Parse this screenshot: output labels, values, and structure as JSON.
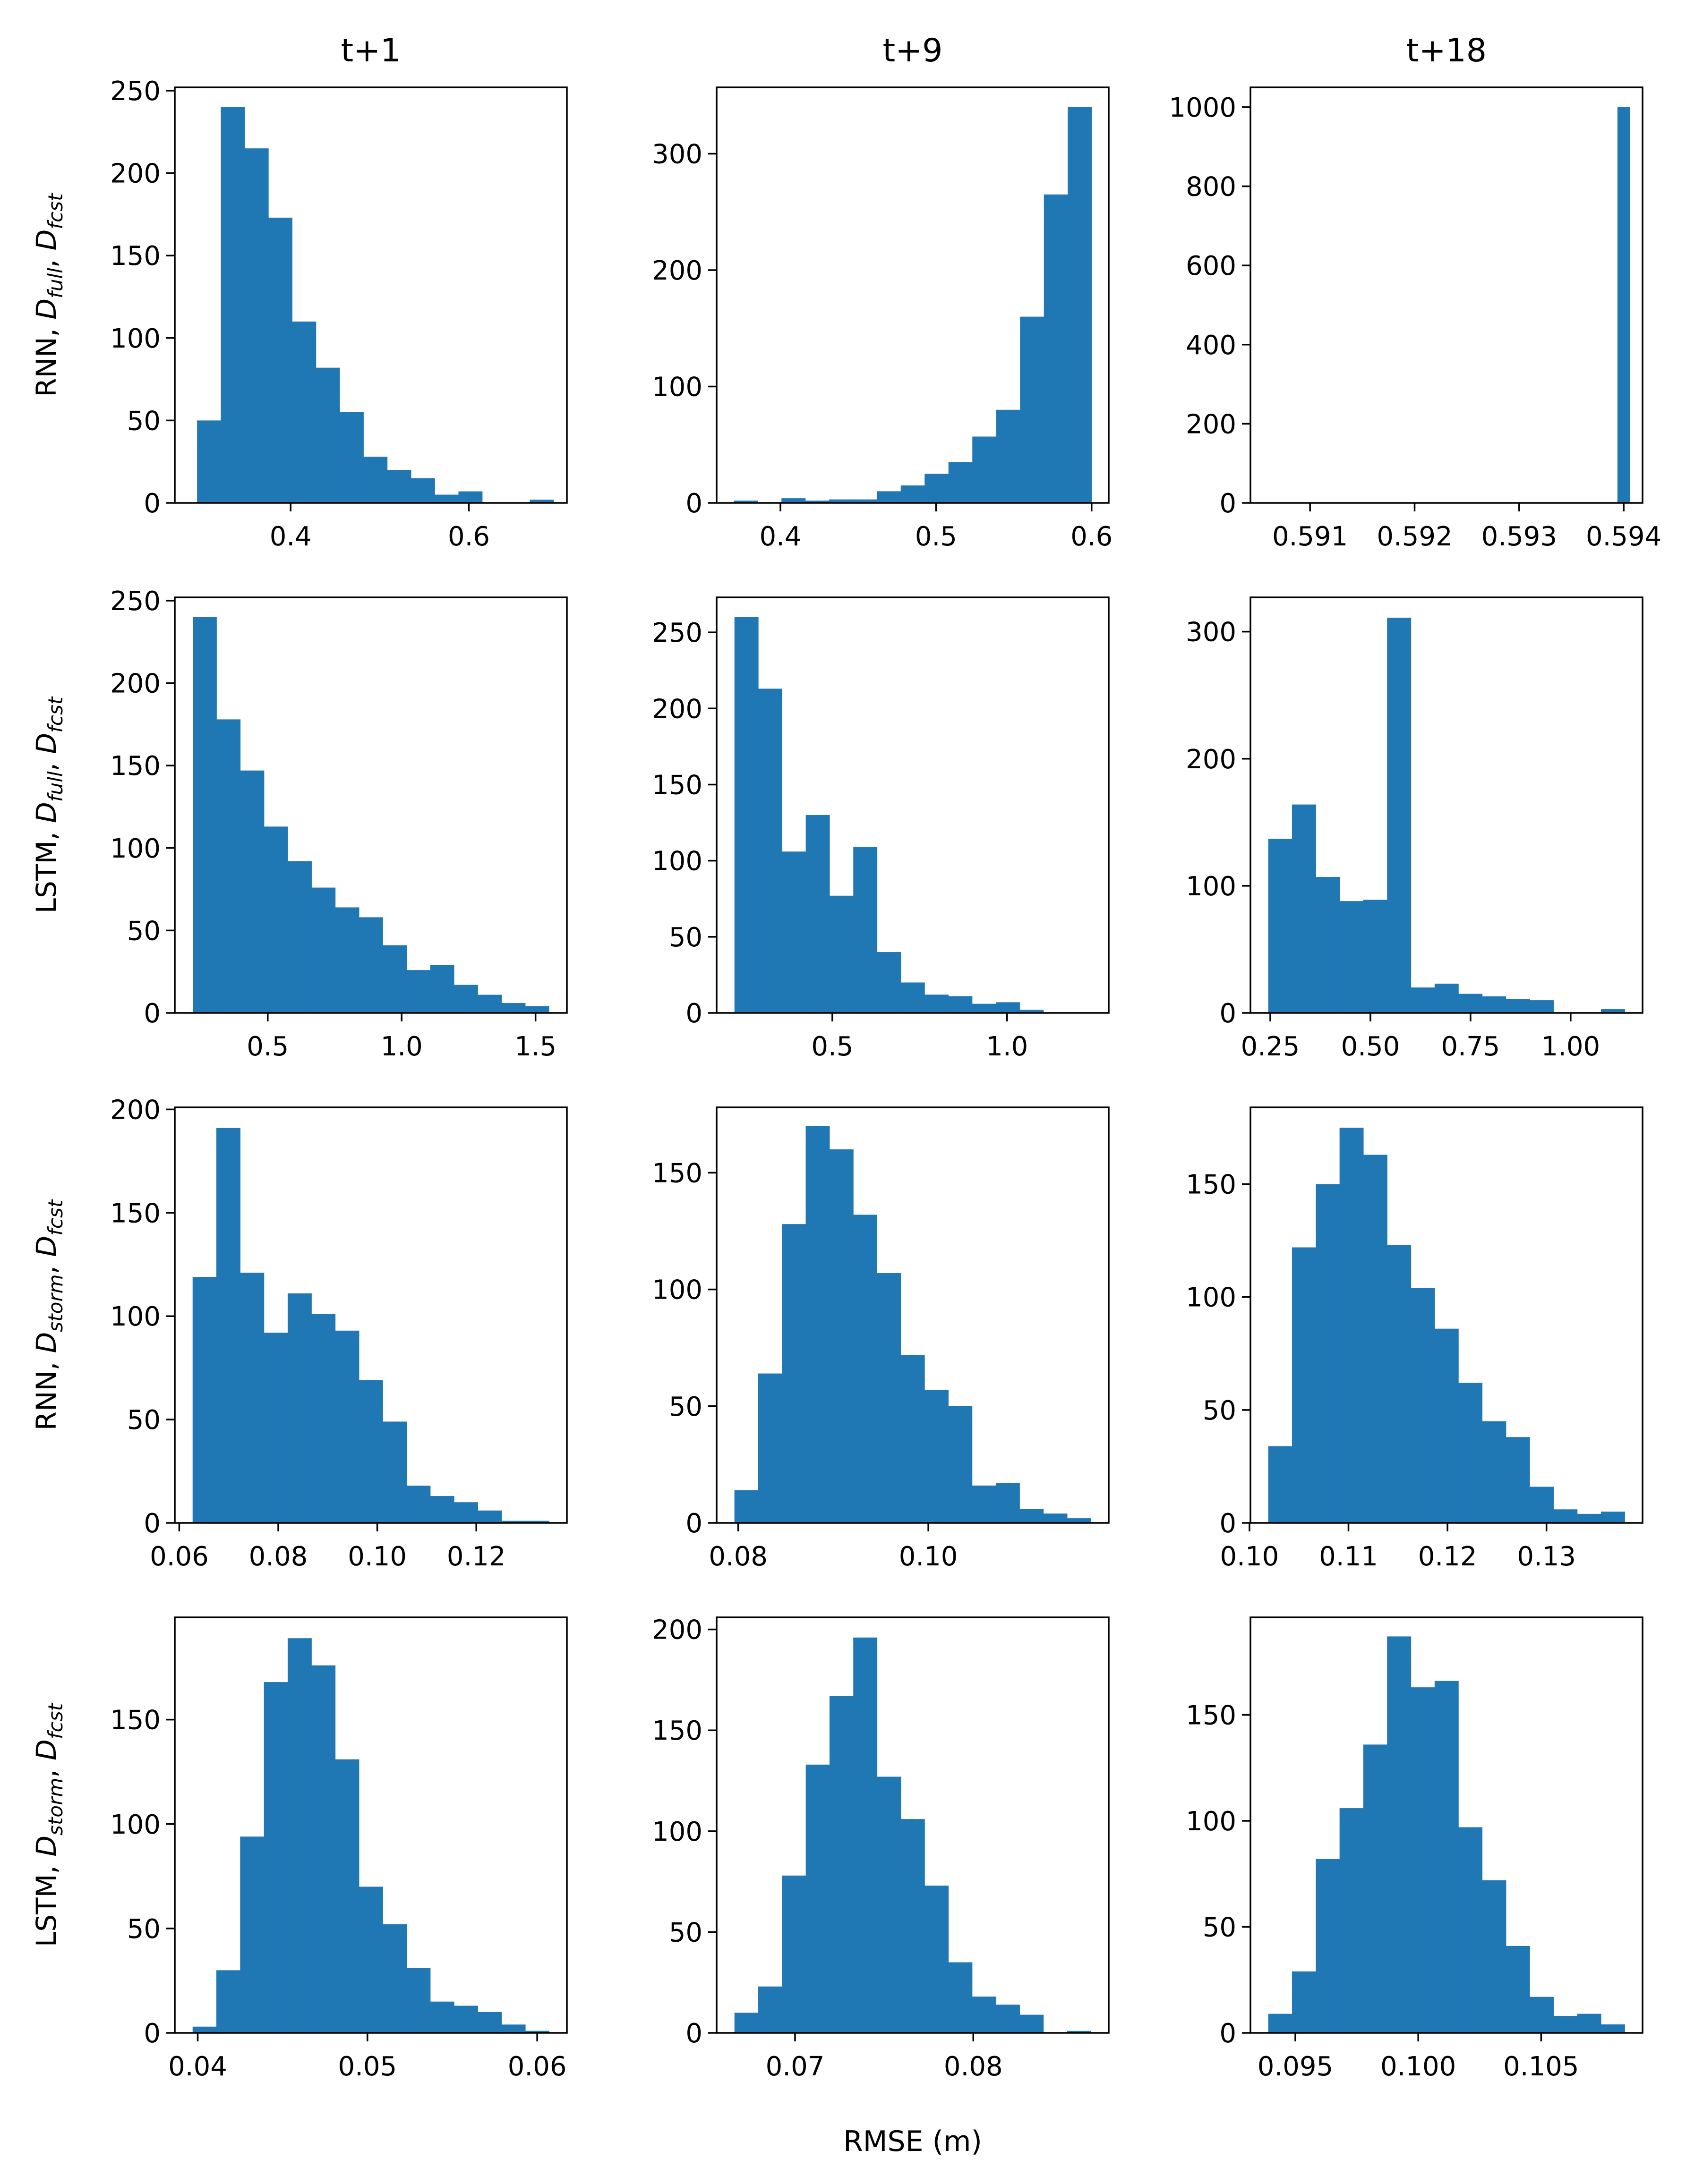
{
  "figure": {
    "col_titles": [
      "t+1",
      "t+9",
      "t+18"
    ],
    "row_labels": [
      {
        "model": "RNN",
        "d1_base": "D",
        "d1_sub": "full",
        "d2_base": "D",
        "d2_sub": "fcst"
      },
      {
        "model": "LSTM",
        "d1_base": "D",
        "d1_sub": "full",
        "d2_base": "D",
        "d2_sub": "fcst"
      },
      {
        "model": "RNN",
        "d1_base": "D",
        "d1_sub": "storm",
        "d2_base": "D",
        "d2_sub": "fcst"
      },
      {
        "model": "LSTM",
        "d1_base": "D",
        "d1_sub": "storm",
        "d2_base": "D",
        "d2_sub": "fcst"
      }
    ],
    "xlabel": "RMSE (m)",
    "bar_color": "#1f77b4"
  },
  "chart_data": [
    {
      "type": "bar",
      "panel": "r0c0",
      "title": "t+1",
      "ylabel": "RNN, D_full, D_fcst",
      "bin_start": 0.295,
      "bin_end": 0.695,
      "values": [
        50,
        240,
        215,
        173,
        110,
        82,
        55,
        28,
        20,
        15,
        5,
        7,
        0,
        0,
        2
      ],
      "xlim": [
        0.27,
        0.71
      ],
      "ylim": [
        0,
        252
      ],
      "xticks": [
        0.4,
        0.6
      ],
      "xtick_labels": [
        "0.4",
        "0.6"
      ],
      "yticks": [
        0,
        50,
        100,
        150,
        200,
        250
      ],
      "ytick_labels": [
        "0",
        "50",
        "100",
        "150",
        "200",
        "250"
      ]
    },
    {
      "type": "bar",
      "panel": "r0c1",
      "title": "t+9",
      "ylabel": "",
      "bin_start": 0.37,
      "bin_end": 0.6,
      "values": [
        2,
        0,
        4,
        2,
        3,
        3,
        10,
        15,
        25,
        35,
        57,
        80,
        160,
        265,
        340
      ],
      "xlim": [
        0.359,
        0.611
      ],
      "ylim": [
        0,
        357
      ],
      "xticks": [
        0.4,
        0.5,
        0.6
      ],
      "xtick_labels": [
        "0.4",
        "0.5",
        "0.6"
      ],
      "yticks": [
        0,
        100,
        200,
        300
      ],
      "ytick_labels": [
        "0",
        "100",
        "200",
        "300"
      ]
    },
    {
      "type": "bar",
      "panel": "r0c2",
      "title": "t+18",
      "ylabel": "",
      "bin_start": 0.59394,
      "bin_end": 0.59406,
      "values": [
        1000
      ],
      "xlim": [
        0.59043,
        0.59418
      ],
      "ylim": [
        0,
        1050
      ],
      "xticks": [
        0.591,
        0.592,
        0.593,
        0.594
      ],
      "xtick_labels": [
        "0.591",
        "0.592",
        "0.593",
        "0.594"
      ],
      "yticks": [
        0,
        200,
        400,
        600,
        800,
        1000
      ],
      "ytick_labels": [
        "0",
        "200",
        "400",
        "600",
        "800",
        "1000"
      ]
    },
    {
      "type": "bar",
      "panel": "r1c0",
      "title": "",
      "ylabel": "LSTM, D_full, D_fcst",
      "bin_start": 0.22,
      "bin_end": 1.55,
      "values": [
        240,
        178,
        147,
        113,
        92,
        76,
        64,
        58,
        41,
        26,
        29,
        17,
        11,
        6,
        4
      ],
      "xlim": [
        0.153,
        1.617
      ],
      "ylim": [
        0,
        252
      ],
      "xticks": [
        0.5,
        1.0,
        1.5
      ],
      "xtick_labels": [
        "0.5",
        "1.0",
        "1.5"
      ],
      "yticks": [
        0,
        50,
        100,
        150,
        200,
        250
      ],
      "ytick_labels": [
        "0",
        "50",
        "100",
        "150",
        "200",
        "250"
      ]
    },
    {
      "type": "bar",
      "panel": "r1c1",
      "title": "",
      "ylabel": "",
      "bin_start": 0.22,
      "bin_end": 1.24,
      "values": [
        260,
        213,
        106,
        130,
        77,
        109,
        40,
        20,
        12,
        11,
        6,
        7,
        2,
        0,
        0
      ],
      "xlim": [
        0.169,
        1.291
      ],
      "ylim": [
        0,
        273
      ],
      "xticks": [
        0.5,
        1.0
      ],
      "xtick_labels": [
        "0.5",
        "1.0"
      ],
      "yticks": [
        0,
        50,
        100,
        150,
        200,
        250
      ],
      "ytick_labels": [
        "0",
        "50",
        "100",
        "150",
        "200",
        "250"
      ]
    },
    {
      "type": "bar",
      "panel": "r1c2",
      "title": "",
      "ylabel": "",
      "bin_start": 0.245,
      "bin_end": 1.135,
      "values": [
        137,
        164,
        107,
        88,
        89,
        311,
        20,
        23,
        15,
        13,
        11,
        10,
        0,
        0,
        3
      ],
      "xlim": [
        0.2005,
        1.1795
      ],
      "ylim": [
        0,
        327
      ],
      "xticks": [
        0.25,
        0.5,
        0.75,
        1.0
      ],
      "xtick_labels": [
        "0.25",
        "0.50",
        "0.75",
        "1.00"
      ],
      "yticks": [
        0,
        100,
        200,
        300
      ],
      "ytick_labels": [
        "0",
        "100",
        "200",
        "300"
      ]
    },
    {
      "type": "bar",
      "panel": "r2c0",
      "title": "",
      "ylabel": "RNN, D_storm, D_fcst",
      "bin_start": 0.0627,
      "bin_end": 0.1347,
      "values": [
        119,
        191,
        121,
        92,
        111,
        101,
        93,
        69,
        49,
        18,
        13,
        10,
        6,
        1,
        1
      ],
      "xlim": [
        0.0591,
        0.1383
      ],
      "ylim": [
        0,
        201
      ],
      "xticks": [
        0.06,
        0.08,
        0.1,
        0.12
      ],
      "xtick_labels": [
        "0.06",
        "0.08",
        "0.10",
        "0.12"
      ],
      "yticks": [
        0,
        50,
        100,
        150,
        200
      ],
      "ytick_labels": [
        "0",
        "50",
        "100",
        "150",
        "200"
      ]
    },
    {
      "type": "bar",
      "panel": "r2c1",
      "title": "",
      "ylabel": "",
      "bin_start": 0.0796,
      "bin_end": 0.1171,
      "values": [
        14,
        64,
        128,
        170,
        160,
        132,
        107,
        72,
        57,
        50,
        16,
        17,
        6,
        4,
        2
      ],
      "xlim": [
        0.07773,
        0.11898
      ],
      "ylim": [
        0,
        178
      ],
      "xticks": [
        0.08,
        0.1
      ],
      "xtick_labels": [
        "0.08",
        "0.10"
      ],
      "yticks": [
        0,
        50,
        100,
        150
      ],
      "ytick_labels": [
        "0",
        "50",
        "100",
        "150"
      ]
    },
    {
      "type": "bar",
      "panel": "r2c2",
      "title": "",
      "ylabel": "",
      "bin_start": 0.1019,
      "bin_end": 0.1379,
      "values": [
        34,
        122,
        150,
        175,
        163,
        123,
        104,
        86,
        62,
        45,
        38,
        16,
        6,
        4,
        5
      ],
      "xlim": [
        0.1001,
        0.1397
      ],
      "ylim": [
        0,
        184
      ],
      "xticks": [
        0.1,
        0.11,
        0.12,
        0.13
      ],
      "xtick_labels": [
        "0.10",
        "0.11",
        "0.12",
        "0.13"
      ],
      "yticks": [
        0,
        50,
        100,
        150
      ],
      "ytick_labels": [
        "0",
        "50",
        "100",
        "150"
      ]
    },
    {
      "type": "bar",
      "panel": "r3c0",
      "title": "",
      "ylabel": "LSTM, D_storm, D_fcst",
      "bin_start": 0.0397,
      "bin_end": 0.0607,
      "values": [
        3,
        30,
        94,
        168,
        189,
        176,
        131,
        70,
        52,
        31,
        15,
        13,
        10,
        4,
        1
      ],
      "xlim": [
        0.03865,
        0.06175
      ],
      "ylim": [
        0,
        199
      ],
      "xticks": [
        0.04,
        0.05,
        0.06
      ],
      "xtick_labels": [
        "0.04",
        "0.05",
        "0.06"
      ],
      "yticks": [
        0,
        50,
        100,
        150
      ],
      "ytick_labels": [
        "0",
        "50",
        "100",
        "150"
      ]
    },
    {
      "type": "bar",
      "panel": "r3c1",
      "title": "",
      "ylabel": "",
      "bin_start": 0.0666,
      "bin_end": 0.0866,
      "values": [
        10,
        23,
        78,
        133,
        167,
        196,
        127,
        106,
        73,
        35,
        18,
        14,
        9,
        0,
        1
      ],
      "xlim": [
        0.0656,
        0.0876
      ],
      "ylim": [
        0,
        206
      ],
      "xticks": [
        0.07,
        0.08
      ],
      "xtick_labels": [
        "0.07",
        "0.08"
      ],
      "yticks": [
        0,
        50,
        100,
        150,
        200
      ],
      "ytick_labels": [
        "0",
        "50",
        "100",
        "150",
        "200"
      ]
    },
    {
      "type": "bar",
      "panel": "r3c2",
      "title": "",
      "ylabel": "",
      "bin_start": 0.0939,
      "bin_end": 0.1084,
      "values": [
        9,
        29,
        82,
        106,
        136,
        187,
        163,
        166,
        97,
        72,
        41,
        17,
        8,
        9,
        4
      ],
      "xlim": [
        0.093175,
        0.109125
      ],
      "ylim": [
        0,
        196
      ],
      "xticks": [
        0.095,
        0.1,
        0.105
      ],
      "xtick_labels": [
        "0.095",
        "0.100",
        "0.105"
      ],
      "yticks": [
        0,
        50,
        100,
        150
      ],
      "ytick_labels": [
        "0",
        "50",
        "100",
        "150"
      ]
    }
  ]
}
